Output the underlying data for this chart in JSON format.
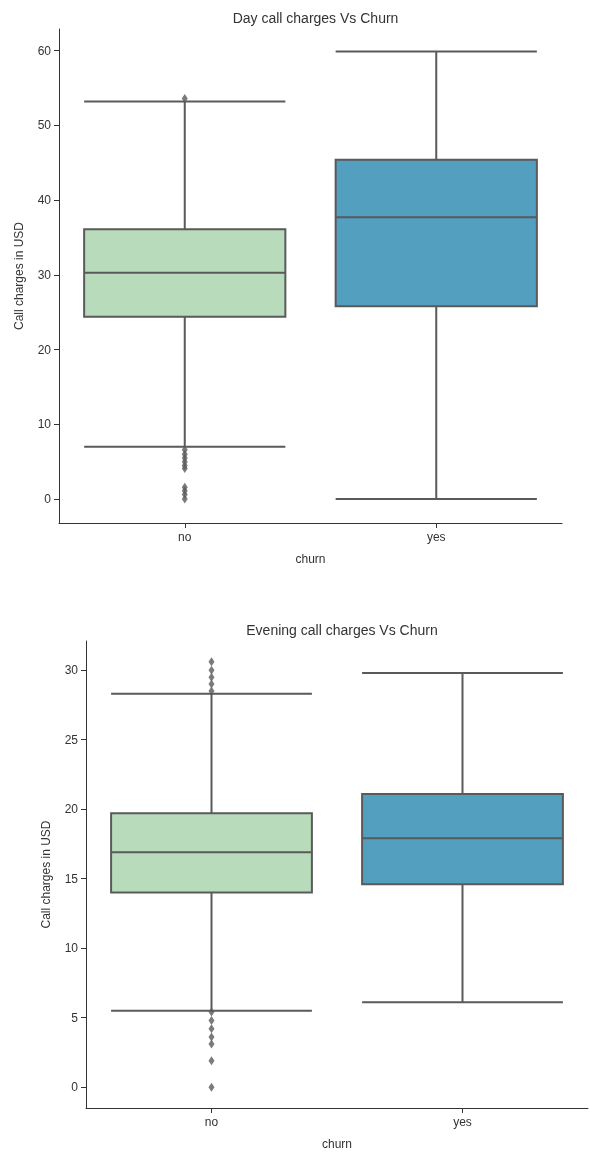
{
  "chart_data": [
    {
      "type": "box",
      "title": "Day call charges Vs Churn",
      "xlabel": "churn",
      "ylabel": "Call charges in USD",
      "categories": [
        "no",
        "yes"
      ],
      "colors": [
        "#b8dcbb",
        "#539fc0"
      ],
      "marker": "diamond",
      "grid": false,
      "ylim": [
        -3.2,
        62.9
      ],
      "yticks": [
        0,
        10,
        20,
        30,
        40,
        50,
        60
      ],
      "boxes": [
        {
          "low": 7.0,
          "q1": 24.4,
          "median": 30.3,
          "q3": 36.1,
          "high": 53.2,
          "outliers": [
            53.6,
            6.6,
            6.0,
            5.5,
            5.0,
            4.5,
            4.1,
            1.6,
            1.1,
            0.6,
            0
          ]
        },
        {
          "low": 0,
          "q1": 25.8,
          "median": 37.7,
          "q3": 45.4,
          "high": 59.9
        }
      ]
    },
    {
      "type": "box",
      "title": "Evening call charges Vs Churn",
      "xlabel": "churn",
      "ylabel": "Call charges in USD",
      "categories": [
        "no",
        "yes"
      ],
      "colors": [
        "#b8dcbb",
        "#539fc0"
      ],
      "marker": "diamond",
      "grid": false,
      "ylim": [
        -1.5,
        32.1
      ],
      "yticks": [
        0,
        5,
        10,
        15,
        20,
        25,
        30
      ],
      "boxes": [
        {
          "low": 5.5,
          "q1": 14.0,
          "median": 16.9,
          "q3": 19.7,
          "high": 28.3,
          "outliers": [
            30.6,
            30.0,
            29.5,
            29.0,
            28.5,
            5.4,
            4.8,
            4.2,
            3.6,
            3.1,
            1.9,
            0
          ]
        },
        {
          "low": 6.1,
          "q1": 14.6,
          "median": 17.9,
          "q3": 21.1,
          "high": 29.8
        }
      ]
    }
  ]
}
